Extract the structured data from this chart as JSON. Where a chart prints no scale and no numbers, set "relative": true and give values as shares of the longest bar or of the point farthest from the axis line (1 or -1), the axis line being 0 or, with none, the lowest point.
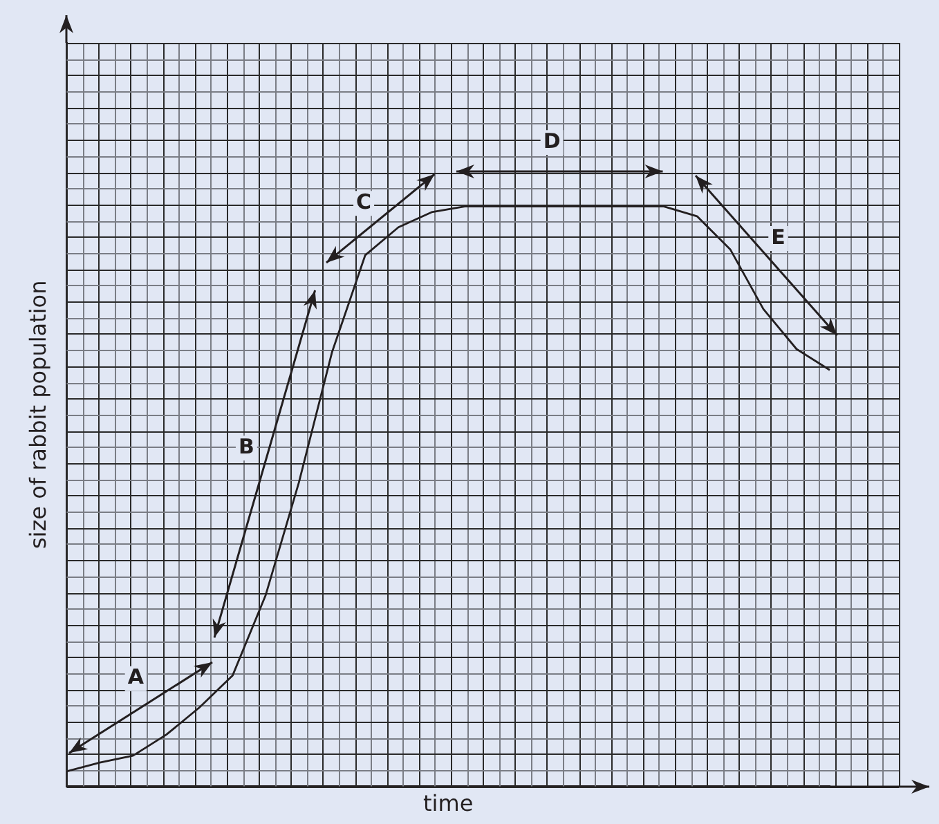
{
  "chart_data": {
    "type": "line",
    "relative": true,
    "xlabel": "time",
    "ylabel": "size of rabbit population",
    "categories": [
      null,
      null,
      null,
      null,
      null,
      null,
      null,
      null,
      null,
      null,
      null,
      null,
      null,
      null,
      null,
      null,
      null,
      null,
      null,
      null,
      null,
      null,
      null,
      null
    ],
    "series": [
      {
        "color": "#231f20",
        "values": [
          0.026,
          0.041,
          0.053,
          0.089,
          0.136,
          0.191,
          0.33,
          0.524,
          0.749,
          0.916,
          0.964,
          0.99,
          1,
          1,
          1,
          1,
          1,
          1,
          1,
          0.983,
          0.926,
          0.823,
          0.754,
          0.718
        ]
      }
    ],
    "annotations": [
      "A",
      "B",
      "C",
      "D",
      "E"
    ],
    "grid": true,
    "marker": "none",
    "line_style": "solid"
  }
}
